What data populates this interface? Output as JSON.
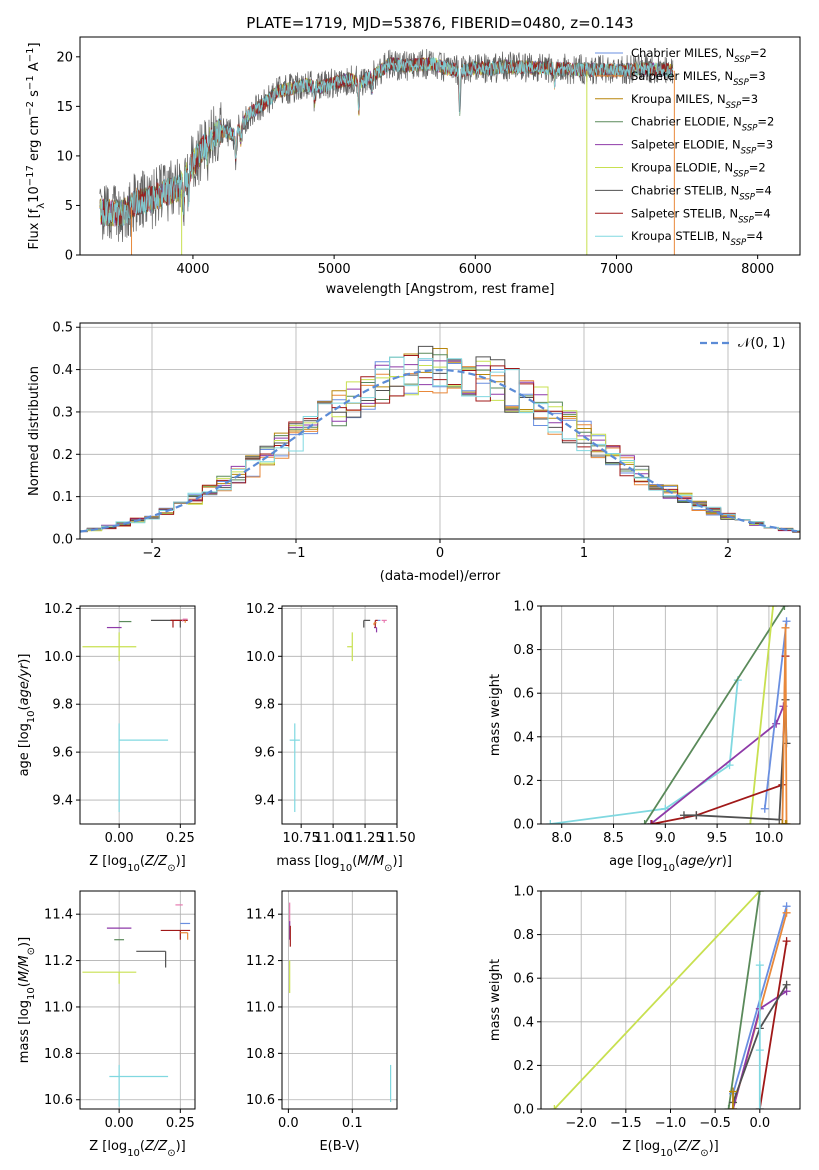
{
  "figure_title": "PLATE=1719, MJD=53876, FIBERID=0480, z=0.143",
  "series_colors": {
    "Chabrier MILES": "#6a8fe0",
    "Salpeter MILES": "#e8883a",
    "Kroupa MILES": "#b8860b",
    "Chabrier ELODIE": "#5a8a5a",
    "Salpeter ELODIE": "#8e3aa8",
    "Kroupa ELODIE": "#c8e050",
    "Chabrier STELIB": "#505050",
    "Salpeter STELIB": "#a01818",
    "Kroupa STELIB": "#80d8e0"
  },
  "chart_data": [
    {
      "id": "spectrum",
      "type": "line",
      "title": "PLATE=1719, MJD=53876, FIBERID=0480, z=0.143",
      "xlabel": "wavelength [Angstrom, rest frame]",
      "ylabel": "Flux [f_λ 10^-17 erg cm^-2 s^-1 A^-1]",
      "xlim": [
        3200,
        8300
      ],
      "ylim": [
        0,
        22
      ],
      "xticks": [
        4000,
        5000,
        6000,
        7000,
        8000
      ],
      "yticks": [
        0,
        5,
        10,
        15,
        20
      ],
      "legend_position": "top-right",
      "legend": [
        {
          "label": "Chabrier MILES, N_SSP=2",
          "main": "Chabrier MILES, N",
          "sub": "SSP",
          "tail": "=2",
          "color": "#6a8fe0"
        },
        {
          "label": "Salpeter MILES, N_SSP=3",
          "main": "Salpeter MILES, N",
          "sub": "SSP",
          "tail": "=3",
          "color": "#e8883a"
        },
        {
          "label": "Kroupa MILES, N_SSP=3",
          "main": "Kroupa MILES, N",
          "sub": "SSP",
          "tail": "=3",
          "color": "#b8860b"
        },
        {
          "label": "Chabrier ELODIE, N_SSP=2",
          "main": "Chabrier ELODIE, N",
          "sub": "SSP",
          "tail": "=2",
          "color": "#5a8a5a"
        },
        {
          "label": "Salpeter ELODIE, N_SSP=3",
          "main": "Salpeter ELODIE, N",
          "sub": "SSP",
          "tail": "=3",
          "color": "#8e3aa8"
        },
        {
          "label": "Kroupa ELODIE, N_SSP=2",
          "main": "Kroupa ELODIE, N",
          "sub": "SSP",
          "tail": "=2",
          "color": "#c8e050"
        },
        {
          "label": "Chabrier STELIB, N_SSP=4",
          "main": "Chabrier STELIB, N",
          "sub": "SSP",
          "tail": "=4",
          "color": "#505050"
        },
        {
          "label": "Salpeter STELIB, N_SSP=4",
          "main": "Salpeter STELIB, N",
          "sub": "SSP",
          "tail": "=4",
          "color": "#a01818"
        },
        {
          "label": "Kroupa STELIB, N_SSP=4",
          "main": "Kroupa STELIB, N",
          "sub": "SSP",
          "tail": "=4",
          "color": "#80d8e0"
        }
      ],
      "continuum_knots": [
        [
          3340,
          4.3
        ],
        [
          3500,
          4.2
        ],
        [
          3600,
          5.4
        ],
        [
          3700,
          5.6
        ],
        [
          3800,
          6.3
        ],
        [
          3900,
          6.7
        ],
        [
          4000,
          9.2
        ],
        [
          4100,
          11.4
        ],
        [
          4200,
          12.6
        ],
        [
          4300,
          12.1
        ],
        [
          4400,
          14.3
        ],
        [
          4500,
          15.2
        ],
        [
          4600,
          16.5
        ],
        [
          4700,
          16.8
        ],
        [
          4800,
          17.2
        ],
        [
          4900,
          16.9
        ],
        [
          5000,
          17.4
        ],
        [
          5100,
          17.7
        ],
        [
          5200,
          17.5
        ],
        [
          5300,
          18.3
        ],
        [
          5400,
          19.3
        ],
        [
          5500,
          19.1
        ],
        [
          5600,
          19.2
        ],
        [
          5700,
          19.3
        ],
        [
          5800,
          18.8
        ],
        [
          5900,
          18.6
        ],
        [
          6000,
          18.9
        ],
        [
          6100,
          18.8
        ],
        [
          6200,
          19.0
        ],
        [
          6400,
          18.9
        ],
        [
          6600,
          18.8
        ],
        [
          6800,
          18.7
        ],
        [
          7000,
          18.6
        ],
        [
          7200,
          18.8
        ],
        [
          7400,
          18.6
        ]
      ],
      "absorption_features": [
        [
          3934,
          3.0
        ],
        [
          3969,
          2.5
        ],
        [
          4102,
          1.5
        ],
        [
          4304,
          2.5
        ],
        [
          4340,
          1.5
        ],
        [
          4861,
          1.5
        ],
        [
          5175,
          3.0
        ],
        [
          5270,
          1.2
        ],
        [
          5890,
          4.0
        ],
        [
          6563,
          1.5
        ]
      ],
      "wavelength_range": [
        3340,
        7400
      ]
    },
    {
      "id": "residuals",
      "type": "histogram",
      "xlabel": "(data-model)/error",
      "ylabel": "Normed distribution",
      "xlim": [
        -2.5,
        2.5
      ],
      "ylim": [
        0,
        0.51
      ],
      "xticks": [
        -2,
        -1,
        0,
        1,
        2
      ],
      "yticks": [
        0.0,
        0.1,
        0.2,
        0.3,
        0.4,
        0.5
      ],
      "legend_position": "top-right",
      "reference_curve": {
        "label": "𝒩(0, 1)",
        "mean": 0,
        "sigma": 1,
        "color": "#5b8bd6",
        "style": "dashed"
      },
      "bin_width": 0.1
    },
    {
      "id": "age_vs_Z",
      "type": "scatter",
      "xlabel": "Z [log10(Z/Z⊙)]",
      "ylabel": "age [log10(age/yr)]",
      "xlim": [
        -0.16,
        0.31
      ],
      "ylim": [
        9.3,
        10.21
      ],
      "xticks": [
        0.0,
        0.25
      ],
      "yticks": [
        9.4,
        9.6,
        9.8,
        10.0,
        10.2
      ],
      "points": [
        {
          "color": "#80d8e0",
          "x": 0.0,
          "y": 9.65,
          "xerr": [
            0.0,
            0.2
          ],
          "yerr": [
            0.3,
            0.07
          ]
        },
        {
          "color": "#c8e050",
          "x": 0.0,
          "y": 10.04,
          "xerr": [
            0.15,
            0.07
          ],
          "yerr": [
            0.06,
            0.06
          ]
        },
        {
          "color": "#8e3aa8",
          "x": 0.0,
          "y": 10.12,
          "xerr": [
            0.05,
            0.01
          ],
          "yerr": [
            0.0,
            0.0
          ]
        },
        {
          "color": "#5a8a5a",
          "x": 0.0,
          "y": 10.145,
          "xerr": [
            0.0,
            0.05
          ],
          "yerr": [
            0.0,
            0.0
          ]
        },
        {
          "color": "#505050",
          "x": 0.25,
          "y": 10.15,
          "xerr": [
            0.12,
            0.03
          ],
          "yerr": [
            0.03,
            0.0
          ]
        },
        {
          "color": "#a01818",
          "x": 0.22,
          "y": 10.15,
          "xerr": [
            0.01,
            0.06
          ],
          "yerr": [
            0.03,
            0.0
          ]
        },
        {
          "color": "#e8883a",
          "x": 0.27,
          "y": 10.15,
          "xerr": [
            0.0,
            0.0
          ],
          "yerr": [
            0.01,
            0.0
          ]
        },
        {
          "color": "#e77ab0",
          "x": 0.26,
          "y": 10.155,
          "xerr": [
            0.0,
            0.02
          ],
          "yerr": [
            0.01,
            0.0
          ]
        }
      ]
    },
    {
      "id": "age_vs_mass",
      "type": "scatter",
      "xlabel": "mass [log10(M/M⊙)]",
      "ylabel": "",
      "xlim": [
        10.6,
        11.5
      ],
      "ylim": [
        9.3,
        10.21
      ],
      "xticks": [
        10.75,
        11.0,
        11.25,
        11.5
      ],
      "xticklabels": [
        "10.75",
        "11.00",
        "11.25",
        "11.50"
      ],
      "yticks": [
        9.4,
        9.6,
        9.8,
        10.0,
        10.2
      ],
      "points": [
        {
          "color": "#80d8e0",
          "x": 10.7,
          "y": 9.65,
          "xerr": [
            0.04,
            0.04
          ],
          "yerr": [
            0.3,
            0.07
          ]
        },
        {
          "color": "#c8e050",
          "x": 11.15,
          "y": 10.04,
          "xerr": [
            0.04,
            0.0
          ],
          "yerr": [
            0.06,
            0.06
          ]
        },
        {
          "color": "#8e3aa8",
          "x": 11.34,
          "y": 10.12,
          "xerr": [
            0.02,
            0.0
          ],
          "yerr": [
            0.02,
            0.0
          ]
        },
        {
          "color": "#505050",
          "x": 11.24,
          "y": 10.15,
          "xerr": [
            0.0,
            0.05
          ],
          "yerr": [
            0.03,
            0.0
          ]
        },
        {
          "color": "#a01818",
          "x": 11.33,
          "y": 10.15,
          "xerr": [
            0.0,
            0.02
          ],
          "yerr": [
            0.03,
            0.0
          ]
        },
        {
          "color": "#e8883a",
          "x": 11.32,
          "y": 10.14,
          "xerr": [
            0.0,
            0.02
          ],
          "yerr": [
            0.01,
            0.0
          ]
        },
        {
          "color": "#e77ab0",
          "x": 11.4,
          "y": 10.15,
          "xerr": [
            0.02,
            0.02
          ],
          "yerr": [
            0.01,
            0.0
          ]
        },
        {
          "color": "#6a8fe0",
          "x": 11.36,
          "y": 10.15,
          "xerr": [
            0.01,
            0.01
          ],
          "yerr": [
            0.0,
            0.0
          ]
        }
      ]
    },
    {
      "id": "massweight_vs_age",
      "type": "line",
      "xlabel": "age [log10(age/yr)]",
      "ylabel": "mass weight",
      "xlim": [
        7.8,
        10.3
      ],
      "ylim": [
        0,
        1
      ],
      "xticks": [
        8.0,
        8.5,
        9.0,
        9.5,
        10.0
      ],
      "yticks": [
        0.0,
        0.2,
        0.4,
        0.6,
        0.8,
        1.0
      ],
      "series": [
        {
          "color": "#80d8e0",
          "x": [
            7.89,
            9.0,
            9.62,
            9.7
          ],
          "y": [
            0.0,
            0.07,
            0.27,
            0.66
          ]
        },
        {
          "color": "#5a8a5a",
          "x": [
            8.8,
            10.15
          ],
          "y": [
            0.0,
            1.0
          ]
        },
        {
          "color": "#8e3aa8",
          "x": [
            8.86,
            10.07,
            10.14
          ],
          "y": [
            0.0,
            0.46,
            0.54
          ]
        },
        {
          "color": "#c8e050",
          "x": [
            9.82,
            10.04
          ],
          "y": [
            0.0,
            1.0
          ]
        },
        {
          "color": "#6a8fe0",
          "x": [
            9.96,
            10.17
          ],
          "y": [
            0.07,
            0.93
          ]
        },
        {
          "color": "#a01818",
          "x": [
            8.87,
            9.3,
            10.13,
            10.16
          ],
          "y": [
            0.0,
            0.04,
            0.18,
            0.77
          ]
        },
        {
          "color": "#505050",
          "x": [
            9.18,
            9.3,
            10.1,
            10.16,
            10.17
          ],
          "y": [
            0.04,
            0.04,
            0.02,
            0.57,
            0.37
          ]
        },
        {
          "color": "#e8883a",
          "x": [
            10.13,
            10.16,
            10.17
          ],
          "y": [
            0.0,
            0.9,
            0.0
          ]
        },
        {
          "color": "#b8860b",
          "x": [
            10.13,
            10.16,
            10.17
          ],
          "y": [
            0.0,
            0.0,
            0.0
          ]
        }
      ]
    },
    {
      "id": "mass_vs_Z",
      "type": "scatter",
      "xlabel": "Z [log10(Z/Z⊙)]",
      "ylabel": "mass [log10(M/M⊙)]",
      "xlim": [
        -0.16,
        0.31
      ],
      "ylim": [
        10.56,
        11.5
      ],
      "xticks": [
        0.0,
        0.25
      ],
      "yticks": [
        10.6,
        10.8,
        11.0,
        11.2,
        11.4
      ],
      "points": [
        {
          "color": "#80d8e0",
          "x": 0.0,
          "y": 10.7,
          "xerr": [
            0.04,
            0.2
          ],
          "yerr": [
            0.13,
            0.05
          ]
        },
        {
          "color": "#c8e050",
          "x": 0.0,
          "y": 11.15,
          "xerr": [
            0.15,
            0.07
          ],
          "yerr": [
            0.05,
            0.0
          ]
        },
        {
          "color": "#8e3aa8",
          "x": 0.0,
          "y": 11.34,
          "xerr": [
            0.05,
            0.05
          ],
          "yerr": [
            0.0,
            0.0
          ]
        },
        {
          "color": "#505050",
          "x": 0.19,
          "y": 11.24,
          "xerr": [
            0.12,
            0.0
          ],
          "yerr": [
            0.07,
            0.0
          ]
        },
        {
          "color": "#5a8a5a",
          "x": 0.0,
          "y": 11.29,
          "xerr": [
            0.02,
            0.02
          ],
          "yerr": [
            0.0,
            0.0
          ]
        },
        {
          "color": "#a01818",
          "x": 0.25,
          "y": 11.33,
          "xerr": [
            0.08,
            0.04
          ],
          "yerr": [
            0.04,
            0.0
          ]
        },
        {
          "color": "#e8883a",
          "x": 0.28,
          "y": 11.32,
          "xerr": [
            0.03,
            0.0
          ],
          "yerr": [
            0.03,
            0.0
          ]
        },
        {
          "color": "#e77ab0",
          "x": 0.26,
          "y": 11.44,
          "xerr": [
            0.03,
            0.0
          ],
          "yerr": [
            0.0,
            0.0
          ]
        },
        {
          "color": "#6a8fe0",
          "x": 0.27,
          "y": 11.36,
          "xerr": [
            0.02,
            0.02
          ],
          "yerr": [
            0.0,
            0.0
          ]
        }
      ]
    },
    {
      "id": "mass_vs_ebv",
      "type": "scatter",
      "xlabel": "E(B-V)",
      "ylabel": "",
      "xlim": [
        -0.01,
        0.17
      ],
      "ylim": [
        10.56,
        11.5
      ],
      "xticks": [
        0.0,
        0.1
      ],
      "yticks": [
        10.6,
        10.8,
        11.0,
        11.2,
        11.4
      ],
      "points": [
        {
          "color": "#80d8e0",
          "x": 0.16,
          "y": 10.65,
          "yerr": [
            0.06,
            0.1
          ]
        },
        {
          "color": "#c8e050",
          "x": 0.002,
          "y": 11.13,
          "yerr": [
            0.07,
            0.07
          ]
        },
        {
          "color": "#e77ab0",
          "x": 0.002,
          "y": 11.4,
          "yerr": [
            0.05,
            0.05
          ]
        },
        {
          "color": "#8e3aa8",
          "x": 0.002,
          "y": 11.33,
          "yerr": [
            0.04,
            0.04
          ]
        },
        {
          "color": "#a01818",
          "x": 0.003,
          "y": 11.31,
          "yerr": [
            0.05,
            0.04
          ]
        }
      ]
    },
    {
      "id": "massweight_vs_Z",
      "type": "line",
      "xlabel": "Z [log10(Z/Z⊙)]",
      "ylabel": "mass weight",
      "xlim": [
        -2.45,
        0.45
      ],
      "ylim": [
        0,
        1
      ],
      "xticks": [
        -2.0,
        -1.5,
        -1.0,
        -0.5,
        0.0
      ],
      "yticks": [
        0.0,
        0.2,
        0.4,
        0.6,
        0.8,
        1.0
      ],
      "series": [
        {
          "color": "#c8e050",
          "x": [
            -2.3,
            0.0
          ],
          "y": [
            0.0,
            1.0
          ]
        },
        {
          "color": "#5a8a5a",
          "x": [
            -0.35,
            0.0
          ],
          "y": [
            0.0,
            1.0
          ]
        },
        {
          "color": "#6a8fe0",
          "x": [
            -0.3,
            0.3
          ],
          "y": [
            0.07,
            0.93
          ]
        },
        {
          "color": "#e8883a",
          "x": [
            -0.3,
            0.3
          ],
          "y": [
            0.0,
            0.9
          ]
        },
        {
          "color": "#8e3aa8",
          "x": [
            -0.3,
            0.0,
            0.3
          ],
          "y": [
            0.0,
            0.46,
            0.54
          ]
        },
        {
          "color": "#a01818",
          "x": [
            0.0,
            0.3
          ],
          "y": [
            0.0,
            0.77
          ]
        },
        {
          "color": "#505050",
          "x": [
            -0.3,
            0.0,
            0.3
          ],
          "y": [
            0.03,
            0.37,
            0.57
          ]
        },
        {
          "color": "#80d8e0",
          "x": [
            0.0,
            0.0,
            0.0
          ],
          "y": [
            0.0,
            0.27,
            0.66
          ]
        },
        {
          "color": "#b8860b",
          "x": [
            -0.3,
            -0.3
          ],
          "y": [
            0.0,
            0.08
          ]
        }
      ]
    }
  ]
}
